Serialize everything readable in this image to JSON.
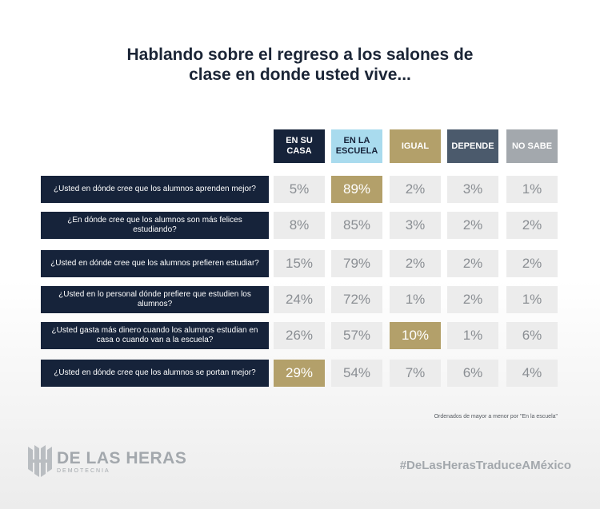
{
  "title": {
    "line1": "Hablando sobre el regreso a los salones de",
    "line2": "clase en donde usted vive..."
  },
  "chart_data": {
    "type": "table",
    "columns": [
      {
        "label": "EN SU CASA",
        "color": "#16233a"
      },
      {
        "label": "EN LA ESCUELA",
        "color": "#a9dbee"
      },
      {
        "label": "IGUAL",
        "color": "#b3a06a"
      },
      {
        "label": "DEPENDE",
        "color": "#4b5a6c"
      },
      {
        "label": "NO SABE",
        "color": "#a3a8ad"
      }
    ],
    "rows": [
      {
        "question": "¿Usted en dónde cree que los alumnos aprenden mejor?",
        "values": [
          "5%",
          "89%",
          "2%",
          "3%",
          "1%"
        ],
        "highlight": 1
      },
      {
        "question": "¿En dónde cree que los alumnos son más felices estudiando?",
        "values": [
          "8%",
          "85%",
          "3%",
          "2%",
          "2%"
        ],
        "highlight": -1
      },
      {
        "question": "¿Usted en dónde cree que los alumnos prefieren estudiar?",
        "values": [
          "15%",
          "79%",
          "2%",
          "2%",
          "2%"
        ],
        "highlight": -1
      },
      {
        "question": "¿Usted en lo personal dónde prefiere que estudien los alumnos?",
        "values": [
          "24%",
          "72%",
          "1%",
          "2%",
          "1%"
        ],
        "highlight": -1
      },
      {
        "question": "¿Usted gasta más dinero cuando los alumnos estudian en casa o cuando van a la escuela?",
        "values": [
          "26%",
          "57%",
          "10%",
          "1%",
          "6%"
        ],
        "highlight": 2
      },
      {
        "question": "¿Usted en dónde cree que los alumnos se portan mejor?",
        "values": [
          "29%",
          "54%",
          "7%",
          "6%",
          "4%"
        ],
        "highlight": 0
      }
    ],
    "highlight_color": "#b3a06a"
  },
  "note": "Ordenados de mayor a menor por \"En la escuela\"",
  "brand": {
    "name": "DE LAS HERAS",
    "sub": "DEMOTECNIA",
    "logo_icon": "de-las-heras-logo-icon"
  },
  "hashtag": "#DeLasHerasTraduceAMéxico"
}
